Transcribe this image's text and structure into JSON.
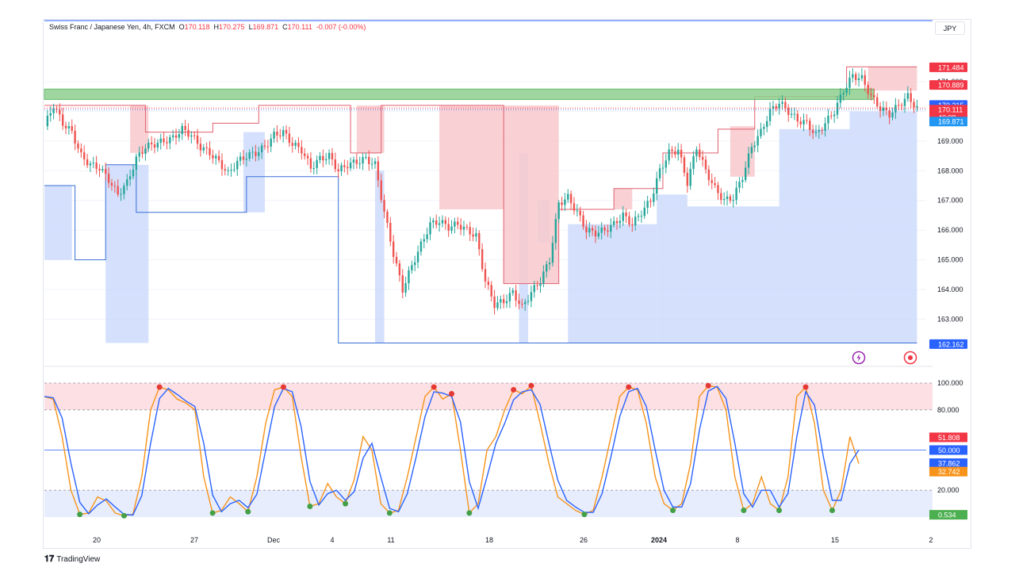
{
  "header": {
    "symbol": "Swiss Franc / Japanese Yen, 4h, FXCM",
    "open_label": "O",
    "open": "170.118",
    "high_label": "H",
    "high": "170.275",
    "low_label": "L",
    "low": "169.871",
    "close_label": "C",
    "close": "170.111",
    "change": "-0.007 (-0.00%)"
  },
  "currency": "JPY",
  "brand": "TradingView",
  "colors": {
    "up": "#26a69a",
    "down": "#ef5350",
    "blue": "#2962ff",
    "orange": "#f7931a",
    "red_zone": "#f8c9cd",
    "blue_zone": "#c9d8fb",
    "green_zone": "#8fcf8f"
  },
  "chart_data": [
    {
      "type": "candlestick",
      "title": "Swiss Franc / Japanese Yen, 4h, FXCM",
      "ylim": [
        162.0,
        172.2
      ],
      "y_ticks": [
        "171.000",
        "170.000",
        "169.000",
        "168.000",
        "167.000",
        "166.000",
        "165.000",
        "164.000",
        "163.000"
      ],
      "x_ticks": [
        "20",
        "27",
        "Dec",
        "4",
        "8",
        "11",
        "18",
        "26",
        "2024",
        "8",
        "15",
        "2"
      ],
      "price_labels": [
        {
          "value": "171.484",
          "color": "#f23645"
        },
        {
          "value": "170.889",
          "color": "#f23645"
        },
        {
          "value": "170.215",
          "color": "#2962ff"
        },
        {
          "value": "170.111",
          "color": "#f23645",
          "countdown": "40:09"
        },
        {
          "value": "169.871",
          "color": "#2196f3"
        },
        {
          "value": "162.162",
          "color": "#2962ff"
        }
      ],
      "resistance_zone": [
        170.4,
        170.75
      ],
      "close_path": [
        [
          0,
          169.5
        ],
        [
          3,
          170.2
        ],
        [
          6,
          169.6
        ],
        [
          9,
          169.3
        ],
        [
          12,
          168.5
        ],
        [
          15,
          168.2
        ],
        [
          18,
          168.1
        ],
        [
          21,
          167.7
        ],
        [
          24,
          167.2
        ],
        [
          27,
          167.6
        ],
        [
          30,
          168.4
        ],
        [
          33,
          168.8
        ],
        [
          36,
          168.9
        ],
        [
          39,
          169.0
        ],
        [
          42,
          169.1
        ],
        [
          45,
          169.4
        ],
        [
          48,
          169.2
        ],
        [
          51,
          168.8
        ],
        [
          54,
          168.6
        ],
        [
          57,
          168.3
        ],
        [
          60,
          167.9
        ],
        [
          63,
          168.3
        ],
        [
          66,
          168.5
        ],
        [
          69,
          168.6
        ],
        [
          72,
          168.8
        ],
        [
          75,
          169.2
        ],
        [
          78,
          169.3
        ],
        [
          81,
          168.9
        ],
        [
          84,
          168.7
        ],
        [
          87,
          168.1
        ],
        [
          90,
          168.4
        ],
        [
          93,
          168.5
        ],
        [
          96,
          168.0
        ],
        [
          99,
          168.2
        ],
        [
          102,
          168.3
        ],
        [
          105,
          168.4
        ],
        [
          108,
          168.2
        ],
        [
          111,
          166.6
        ],
        [
          114,
          165.2
        ],
        [
          117,
          164.0
        ],
        [
          120,
          164.8
        ],
        [
          123,
          165.5
        ],
        [
          126,
          166.2
        ],
        [
          129,
          166.3
        ],
        [
          132,
          166.1
        ],
        [
          135,
          166.2
        ],
        [
          138,
          166.0
        ],
        [
          141,
          165.8
        ],
        [
          144,
          164.3
        ],
        [
          147,
          163.5
        ],
        [
          150,
          163.6
        ],
        [
          153,
          163.9
        ],
        [
          156,
          163.4
        ],
        [
          159,
          163.9
        ],
        [
          162,
          164.3
        ],
        [
          165,
          165.0
        ],
        [
          168,
          166.9
        ],
        [
          171,
          167.1
        ],
        [
          174,
          166.6
        ],
        [
          177,
          166.0
        ],
        [
          180,
          165.9
        ],
        [
          183,
          166.0
        ],
        [
          186,
          166.2
        ],
        [
          189,
          166.5
        ],
        [
          192,
          166.2
        ],
        [
          195,
          166.6
        ],
        [
          198,
          167.0
        ],
        [
          201,
          168.0
        ],
        [
          204,
          168.6
        ],
        [
          207,
          168.7
        ],
        [
          210,
          167.6
        ],
        [
          213,
          168.8
        ],
        [
          216,
          168.0
        ],
        [
          219,
          167.4
        ],
        [
          222,
          167.0
        ],
        [
          225,
          167.1
        ],
        [
          228,
          167.8
        ],
        [
          231,
          168.8
        ],
        [
          234,
          169.3
        ],
        [
          237,
          170.0
        ],
        [
          240,
          170.3
        ],
        [
          243,
          170.0
        ],
        [
          246,
          169.7
        ],
        [
          249,
          169.6
        ],
        [
          252,
          169.2
        ],
        [
          255,
          169.6
        ],
        [
          258,
          170.0
        ],
        [
          261,
          170.7
        ],
        [
          264,
          171.2
        ],
        [
          267,
          171.1
        ],
        [
          270,
          170.5
        ],
        [
          273,
          170.1
        ],
        [
          276,
          169.9
        ],
        [
          279,
          170.2
        ],
        [
          282,
          170.5
        ],
        [
          285,
          170.1
        ]
      ]
    },
    {
      "type": "line",
      "title": "Stochastic",
      "ylim": [
        0,
        100
      ],
      "y_ticks": [
        "100.000",
        "80.000",
        "20.000"
      ],
      "value_labels": [
        {
          "value": "51.808",
          "color": "#f23645"
        },
        {
          "value": "50.000",
          "color": "#2962ff"
        },
        {
          "value": "37.862",
          "color": "#2962ff"
        },
        {
          "value": "32.742",
          "color": "#f7931a"
        },
        {
          "value": "0.534",
          "color": "#4caf50"
        }
      ],
      "series": [
        {
          "values": [
            90,
            88,
            60,
            20,
            2,
            3,
            15,
            12,
            3,
            1,
            2,
            30,
            80,
            97,
            95,
            88,
            85,
            80,
            30,
            3,
            5,
            15,
            10,
            4,
            30,
            70,
            95,
            97,
            90,
            45,
            8,
            10,
            25,
            15,
            10,
            28,
            60,
            50,
            10,
            3,
            5,
            30,
            60,
            90,
            97,
            88,
            92,
            50,
            3,
            10,
            50,
            60,
            80,
            95,
            92,
            98,
            70,
            40,
            15,
            10,
            5,
            2,
            5,
            30,
            60,
            90,
            97,
            95,
            70,
            30,
            10,
            5,
            10,
            40,
            90,
            98,
            97,
            80,
            30,
            5,
            10,
            30,
            10,
            5,
            30,
            90,
            97,
            70,
            20,
            5,
            20,
            60,
            40
          ]
        }
      ]
    }
  ]
}
